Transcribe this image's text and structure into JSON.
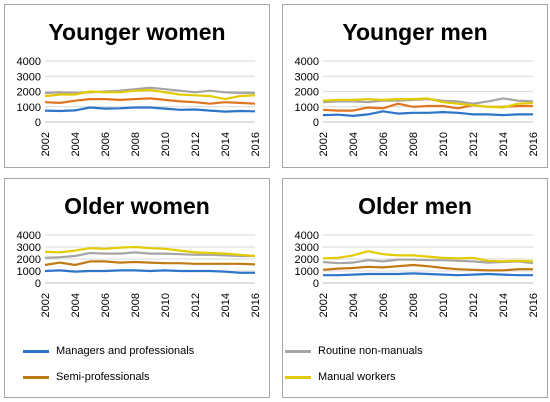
{
  "chart_data": [
    {
      "type": "line",
      "title": "Younger women",
      "x": [
        2002,
        2003,
        2004,
        2005,
        2006,
        2007,
        2008,
        2009,
        2010,
        2011,
        2012,
        2013,
        2014,
        2015,
        2016
      ],
      "xticks": [
        "2002",
        "2004",
        "2006",
        "2008",
        "2010",
        "2012",
        "2014",
        "2016"
      ],
      "yticks": [
        "0",
        "1000",
        "2000",
        "3000",
        "4000"
      ],
      "ylim": [
        0,
        4000
      ],
      "series": [
        {
          "name": "Managers and professionals",
          "color": "#2e75c9",
          "values": [
            750,
            720,
            760,
            950,
            880,
            900,
            950,
            950,
            880,
            800,
            820,
            750,
            680,
            720,
            700
          ]
        },
        {
          "name": "Routine non-manuals",
          "color": "#a5a5a5",
          "values": [
            1900,
            1950,
            1900,
            1950,
            2000,
            2050,
            2150,
            2250,
            2150,
            2050,
            1950,
            2050,
            1950,
            1900,
            1900
          ]
        },
        {
          "name": "Semi-professionals",
          "color": "#e0741f",
          "values": [
            1300,
            1250,
            1400,
            1500,
            1500,
            1450,
            1500,
            1550,
            1450,
            1350,
            1300,
            1200,
            1300,
            1250,
            1200
          ]
        },
        {
          "name": "Manual workers",
          "color": "#e2cc00",
          "values": [
            1700,
            1800,
            1800,
            2000,
            1950,
            1950,
            2050,
            2100,
            1950,
            1800,
            1750,
            1700,
            1500,
            1700,
            1750
          ]
        }
      ]
    },
    {
      "type": "line",
      "title": "Younger men",
      "x": [
        2002,
        2003,
        2004,
        2005,
        2006,
        2007,
        2008,
        2009,
        2010,
        2011,
        2012,
        2013,
        2014,
        2015,
        2016
      ],
      "xticks": [
        "2002",
        "2004",
        "2006",
        "2008",
        "2010",
        "2012",
        "2014",
        "2016"
      ],
      "yticks": [
        "0",
        "1000",
        "2000",
        "3000",
        "4000"
      ],
      "ylim": [
        0,
        4000
      ],
      "series": [
        {
          "name": "Managers and professionals",
          "color": "#2e75c9",
          "values": [
            450,
            480,
            400,
            500,
            700,
            550,
            600,
            600,
            650,
            600,
            500,
            500,
            450,
            500,
            500
          ]
        },
        {
          "name": "Routine non-manuals",
          "color": "#a5a5a5",
          "values": [
            1300,
            1350,
            1350,
            1300,
            1400,
            1400,
            1450,
            1500,
            1400,
            1350,
            1200,
            1350,
            1550,
            1400,
            1350
          ]
        },
        {
          "name": "Semi-professionals",
          "color": "#e0741f",
          "values": [
            800,
            750,
            750,
            950,
            900,
            1200,
            1000,
            1050,
            1050,
            900,
            1100,
            1000,
            1000,
            1050,
            1050
          ]
        },
        {
          "name": "Manual workers",
          "color": "#e2cc00",
          "values": [
            1400,
            1450,
            1450,
            1500,
            1450,
            1500,
            1500,
            1550,
            1300,
            1200,
            1100,
            1000,
            950,
            1200,
            1250
          ]
        }
      ]
    },
    {
      "type": "line",
      "title": "Older women",
      "x": [
        2002,
        2003,
        2004,
        2005,
        2006,
        2007,
        2008,
        2009,
        2010,
        2011,
        2012,
        2013,
        2014,
        2015,
        2016
      ],
      "xticks": [
        "2002",
        "2004",
        "2006",
        "2008",
        "2010",
        "2012",
        "2014",
        "2016"
      ],
      "yticks": [
        "0",
        "1000",
        "2000",
        "3000",
        "4000"
      ],
      "ylim": [
        0,
        4000
      ],
      "series": [
        {
          "name": "Managers and professionals",
          "color": "#2e75c9",
          "values": [
            1000,
            1050,
            950,
            1000,
            1000,
            1050,
            1050,
            1000,
            1050,
            1000,
            1000,
            1000,
            950,
            850,
            850
          ]
        },
        {
          "name": "Routine non-manuals",
          "color": "#a5a5a5",
          "values": [
            2100,
            2150,
            2250,
            2500,
            2450,
            2450,
            2550,
            2450,
            2450,
            2400,
            2350,
            2350,
            2300,
            2250,
            2250
          ]
        },
        {
          "name": "Semi-professionals",
          "color": "#c07a14",
          "values": [
            1500,
            1700,
            1500,
            1800,
            1800,
            1700,
            1750,
            1700,
            1650,
            1650,
            1600,
            1600,
            1600,
            1600,
            1550
          ]
        },
        {
          "name": "Manual workers",
          "color": "#e2cc00",
          "values": [
            2600,
            2550,
            2700,
            2900,
            2850,
            2950,
            3000,
            2900,
            2850,
            2700,
            2550,
            2500,
            2450,
            2350,
            2250
          ]
        }
      ]
    },
    {
      "type": "line",
      "title": "Older men",
      "x": [
        2002,
        2003,
        2004,
        2005,
        2006,
        2007,
        2008,
        2009,
        2010,
        2011,
        2012,
        2013,
        2014,
        2015,
        2016
      ],
      "xticks": [
        "2002",
        "2004",
        "2006",
        "2008",
        "2010",
        "2012",
        "2014",
        "2016"
      ],
      "yticks": [
        "0",
        "1000",
        "2000",
        "3000",
        "4000"
      ],
      "ylim": [
        0,
        4000
      ],
      "series": [
        {
          "name": "Managers and professionals",
          "color": "#2e75c9",
          "values": [
            650,
            650,
            700,
            750,
            750,
            750,
            800,
            750,
            700,
            650,
            700,
            750,
            700,
            650,
            650
          ]
        },
        {
          "name": "Routine non-manuals",
          "color": "#a5a5a5",
          "values": [
            1750,
            1650,
            1700,
            1900,
            1800,
            1950,
            1950,
            1900,
            1900,
            1850,
            1800,
            1700,
            1750,
            1800,
            1650
          ]
        },
        {
          "name": "Semi-professionals",
          "color": "#c07a14",
          "values": [
            1100,
            1200,
            1250,
            1350,
            1300,
            1400,
            1500,
            1400,
            1250,
            1150,
            1100,
            1050,
            1050,
            1150,
            1150
          ]
        },
        {
          "name": "Manual workers",
          "color": "#e2cc00",
          "values": [
            2050,
            2100,
            2300,
            2650,
            2400,
            2300,
            2300,
            2200,
            2100,
            2050,
            2100,
            1850,
            1800,
            1850,
            1800
          ]
        }
      ]
    }
  ],
  "legend": [
    {
      "label": "Managers and professionals",
      "color": "#2e75c9"
    },
    {
      "label": "Routine non-manuals",
      "color": "#a5a5a5"
    },
    {
      "label": "Semi-professionals",
      "color": "#c07a14"
    },
    {
      "label": "Manual workers",
      "color": "#e2cc00"
    }
  ]
}
